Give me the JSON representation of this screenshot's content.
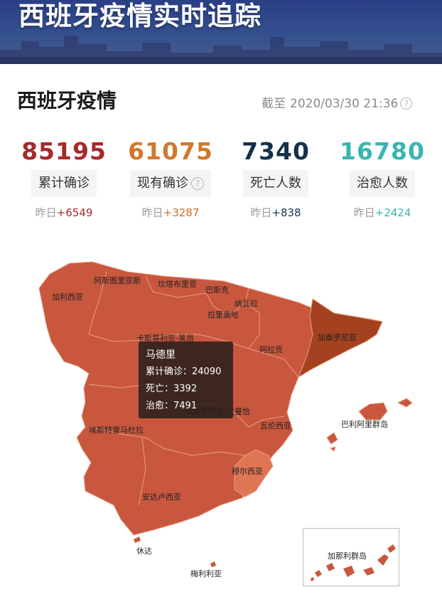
{
  "banner": {
    "title": "西班牙疫情实时追踪"
  },
  "header": {
    "title": "西班牙疫情",
    "asof_prefix": "截至",
    "asof_time": "2020/03/30 21:36",
    "info_icon": "?"
  },
  "stats": [
    {
      "value": "85195",
      "label": "累计确诊",
      "delta_prefix": "昨日",
      "delta": "+6549",
      "color": "#a52a2a",
      "delta_color": "#a52a2a"
    },
    {
      "value": "61075",
      "label": "现有确诊",
      "has_info": true,
      "delta_prefix": "昨日",
      "delta": "+3287",
      "color": "#d0782e",
      "delta_color": "#c86f2a"
    },
    {
      "value": "7340",
      "label": "死亡人数",
      "delta_prefix": "昨日",
      "delta": "+838",
      "color": "#15304a",
      "delta_color": "#15304a"
    },
    {
      "value": "16780",
      "label": "治愈人数",
      "delta_prefix": "昨日",
      "delta": "+2424",
      "color": "#3ab5b0",
      "delta_color": "#3ab5b0"
    }
  ],
  "map": {
    "colors": {
      "high": "#c8573e",
      "darker": "#a4411f",
      "light": "#e07554",
      "border": "#e8a086"
    },
    "regions": {
      "galicia": "加利西亚",
      "asturias": "阿斯图里亚斯",
      "cantabria": "坎塔布里亚",
      "basque": "巴斯克",
      "navarra": "纳瓦拉",
      "rioja": "拉里奥哈",
      "castilla_leon": "卡斯蒂利亚-莱昂",
      "aragon": "阿拉贡",
      "catalonia": "加泰罗尼亚",
      "castilla_mancha": "卡斯蒂利亚-拉曼恰",
      "extremadura": "埃斯特雷马杜拉",
      "valencia": "瓦伦西亚",
      "balearic": "巴利阿里群岛",
      "murcia": "穆尔西亚",
      "andalusia": "安达卢西亚",
      "ceuta": "休达",
      "melilla": "梅利利亚",
      "canary": "加那利群岛"
    },
    "tooltip": {
      "title": "马德里",
      "confirmed_label": "累计确诊：",
      "confirmed": "24090",
      "deaths_label": "死亡：",
      "deaths": "3392",
      "recovered_label": "治愈：",
      "recovered": "7491"
    }
  }
}
